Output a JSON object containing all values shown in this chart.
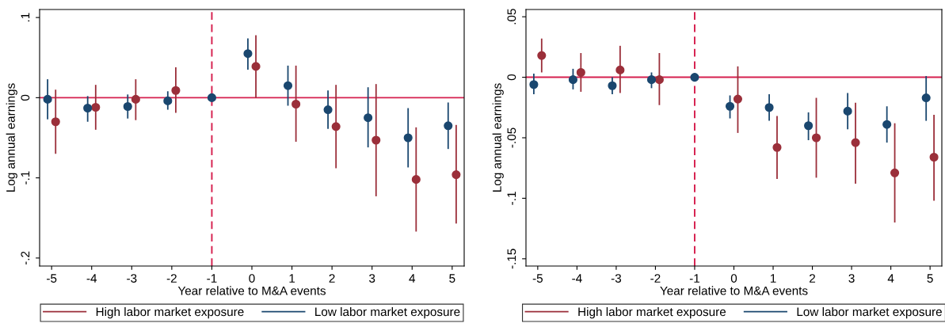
{
  "chart_data": [
    {
      "type": "scatter",
      "xlabel": "Year relative to M&A events",
      "ylabel": "Log annual earnings",
      "xlim": [
        -5.3,
        5.3
      ],
      "xticks": [
        -5,
        -4,
        -3,
        -2,
        -1,
        0,
        1,
        2,
        3,
        4,
        5
      ],
      "ylim": [
        -0.21,
        0.11
      ],
      "yticks": [
        {
          "value": 0.1,
          "label": ".1"
        },
        0,
        {
          "value": -0.1,
          "label": "-.1"
        },
        {
          "value": -0.2,
          "label": "-.2"
        }
      ],
      "grid": false,
      "legend": "bottom",
      "marker": "circle",
      "ref_lines": [
        {
          "axis": "y",
          "value": 0,
          "color": "#d6204f",
          "line_style": "solid"
        },
        {
          "axis": "x",
          "value": -1,
          "color": "#d6204f",
          "line_style": "dashed"
        }
      ],
      "series": [
        {
          "name": "High labor market exposure",
          "color": "#9b2f3a",
          "x": [
            -4.9,
            -3.9,
            -2.9,
            -1.9,
            0.1,
            1.1,
            2.1,
            3.1,
            4.1,
            5.1
          ],
          "values": [
            -0.03,
            -0.012,
            -0.002,
            0.009,
            0.039,
            -0.008,
            -0.036,
            -0.053,
            -0.102,
            -0.096
          ],
          "errors": [
            [
              -0.07,
              0.01
            ],
            [
              -0.04,
              0.016
            ],
            [
              -0.028,
              0.023
            ],
            [
              -0.019,
              0.038
            ],
            [
              0.0,
              0.078
            ],
            [
              -0.055,
              0.04
            ],
            [
              -0.088,
              0.016
            ],
            [
              -0.123,
              0.017
            ],
            [
              -0.167,
              -0.037
            ],
            [
              -0.157,
              -0.034
            ]
          ]
        },
        {
          "name": "Low labor market exposure",
          "color": "#1a476f",
          "x": [
            -5.1,
            -4.1,
            -3.1,
            -2.1,
            -1,
            -0.1,
            0.9,
            1.9,
            2.9,
            3.9,
            4.9
          ],
          "values": [
            -0.002,
            -0.013,
            -0.011,
            -0.004,
            0,
            0.055,
            0.015,
            -0.015,
            -0.025,
            -0.05,
            -0.035
          ],
          "errors": [
            [
              -0.027,
              0.023
            ],
            [
              -0.03,
              0.002
            ],
            [
              -0.026,
              0.004
            ],
            [
              -0.015,
              0.008
            ],
            null,
            [
              0.035,
              0.074
            ],
            [
              -0.01,
              0.04
            ],
            [
              -0.039,
              0.009
            ],
            [
              -0.062,
              0.013
            ],
            [
              -0.087,
              -0.013
            ],
            [
              -0.064,
              -0.006
            ]
          ]
        }
      ]
    },
    {
      "type": "scatter",
      "xlabel": "Year relative to M&A events",
      "ylabel": "Log annual earnings",
      "xlim": [
        -5.3,
        5.3
      ],
      "xticks": [
        -5,
        -4,
        -3,
        -2,
        -1,
        0,
        1,
        2,
        3,
        4,
        5
      ],
      "ylim": [
        -0.156,
        0.056
      ],
      "yticks": [
        {
          "value": 0.05,
          "label": ".05"
        },
        0,
        {
          "value": -0.05,
          "label": "-.05"
        },
        {
          "value": -0.1,
          "label": "-.1"
        },
        {
          "value": -0.15,
          "label": "-.15"
        }
      ],
      "grid": false,
      "legend": "bottom",
      "marker": "circle",
      "ref_lines": [
        {
          "axis": "y",
          "value": 0,
          "color": "#d6204f",
          "line_style": "solid"
        },
        {
          "axis": "x",
          "value": -1,
          "color": "#d6204f",
          "line_style": "dashed"
        }
      ],
      "series": [
        {
          "name": "High labor market exposure",
          "color": "#9b2f3a",
          "x": [
            -4.9,
            -3.9,
            -2.9,
            -1.9,
            0.1,
            1.1,
            2.1,
            3.1,
            4.1,
            5.1
          ],
          "values": [
            0.018,
            0.004,
            0.006,
            -0.002,
            -0.018,
            -0.058,
            -0.05,
            -0.054,
            -0.079,
            -0.066
          ],
          "errors": [
            [
              0.004,
              0.032
            ],
            [
              -0.012,
              0.02
            ],
            [
              -0.013,
              0.026
            ],
            [
              -0.023,
              0.02
            ],
            [
              -0.046,
              0.009
            ],
            [
              -0.084,
              -0.032
            ],
            [
              -0.083,
              -0.017
            ],
            [
              -0.088,
              -0.021
            ],
            [
              -0.12,
              -0.038
            ],
            [
              -0.102,
              -0.031
            ]
          ]
        },
        {
          "name": "Low labor market exposure",
          "color": "#1a476f",
          "x": [
            -5.1,
            -4.1,
            -3.1,
            -2.1,
            -1,
            -0.1,
            0.9,
            1.9,
            2.9,
            3.9,
            4.9
          ],
          "values": [
            -0.006,
            -0.002,
            -0.007,
            -0.002,
            0,
            -0.024,
            -0.025,
            -0.04,
            -0.028,
            -0.039,
            -0.017
          ],
          "errors": [
            [
              -0.014,
              0.003
            ],
            [
              -0.01,
              0.007
            ],
            [
              -0.014,
              0.0
            ],
            [
              -0.009,
              0.004
            ],
            null,
            [
              -0.034,
              -0.015
            ],
            [
              -0.036,
              -0.014
            ],
            [
              -0.052,
              -0.029
            ],
            [
              -0.043,
              -0.013
            ],
            [
              -0.054,
              -0.024
            ],
            [
              -0.036,
              0.001
            ]
          ]
        }
      ]
    }
  ]
}
